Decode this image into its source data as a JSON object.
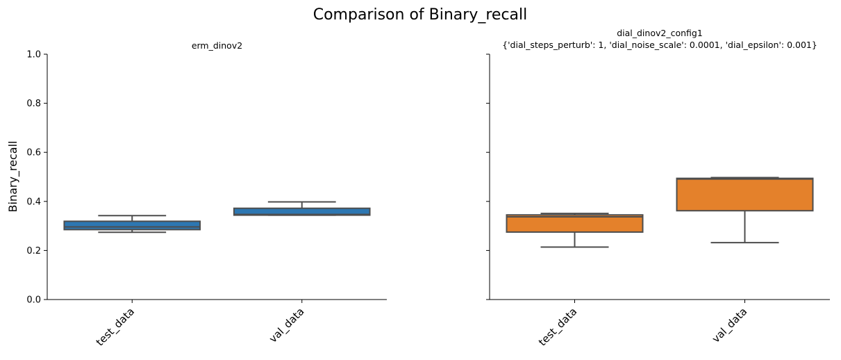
{
  "chart_data": {
    "type": "box",
    "title": "Comparison of Binary_recall",
    "ylabel": "Binary_recall",
    "ylim": [
      0,
      1
    ],
    "yticks": [
      0.0,
      0.2,
      0.4,
      0.6,
      0.8,
      1.0
    ],
    "ytick_labels": [
      "0.0",
      "0.2",
      "0.4",
      "0.6",
      "0.8",
      "1.0"
    ],
    "categories": [
      "test_data",
      "val_data"
    ],
    "panels": [
      {
        "title_lines": [
          "erm_dinov2"
        ],
        "color": "#2d77b2",
        "boxes": [
          {
            "category": "test_data",
            "whisker_low": 0.274,
            "q1": 0.285,
            "median": 0.296,
            "q3": 0.319,
            "whisker_high": 0.342
          },
          {
            "category": "val_data",
            "whisker_low": 0.344,
            "q1": 0.344,
            "median": 0.347,
            "q3": 0.372,
            "whisker_high": 0.398
          }
        ]
      },
      {
        "title_lines": [
          "dial_dinov2_config1",
          "{'dial_steps_perturb': 1, 'dial_noise_scale': 0.0001, 'dial_epsilon': 0.001}"
        ],
        "color": "#e4812b",
        "boxes": [
          {
            "category": "test_data",
            "whisker_low": 0.214,
            "q1": 0.275,
            "median": 0.337,
            "q3": 0.345,
            "whisker_high": 0.351
          },
          {
            "category": "val_data",
            "whisker_low": 0.232,
            "q1": 0.362,
            "median": 0.491,
            "q3": 0.494,
            "whisker_high": 0.497
          }
        ]
      }
    ]
  }
}
